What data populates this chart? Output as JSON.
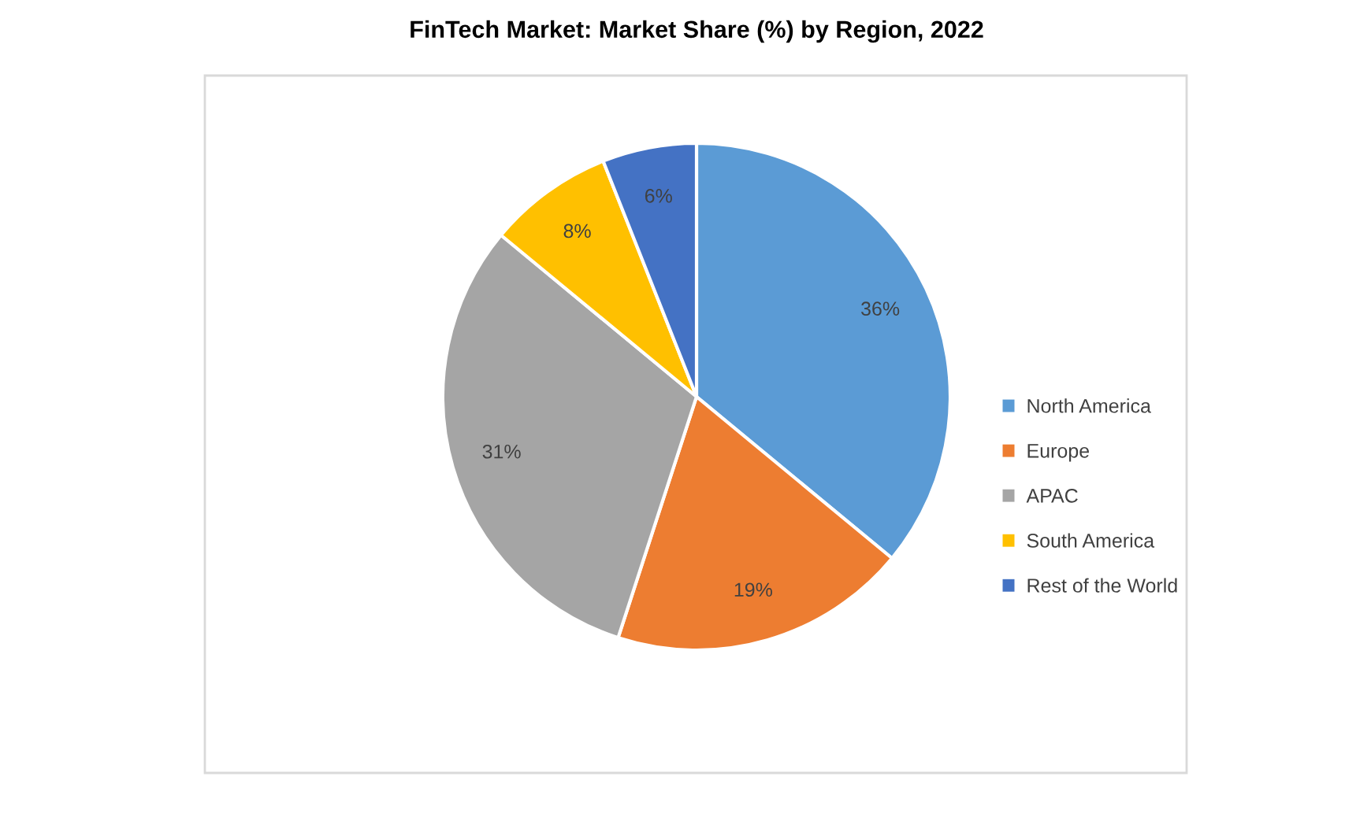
{
  "chart_data": {
    "type": "pie",
    "title": "FinTech Market: Market Share (%) by Region, 2022",
    "categories": [
      "North America",
      "Europe",
      "APAC",
      "South America",
      "Rest of the World"
    ],
    "values": [
      36,
      19,
      31,
      8,
      6
    ],
    "colors": [
      "#5b9bd5",
      "#ed7d31",
      "#a5a5a5",
      "#ffc000",
      "#4472c4"
    ],
    "value_labels": [
      "36%",
      "19%",
      "31%",
      "8%",
      "6%"
    ],
    "legend": "right"
  }
}
